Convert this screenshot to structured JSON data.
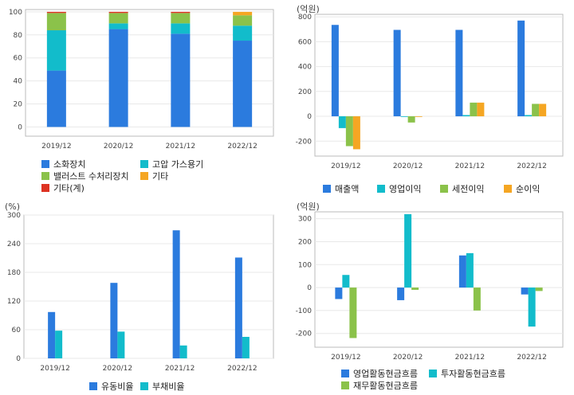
{
  "colors": {
    "blue": "#2b7bde",
    "cyan": "#12bccb",
    "green": "#8bc24a",
    "orange": "#f5a623",
    "red": "#dd3322",
    "plot_border": "#bbbbbb",
    "grid": "#e8e8e8"
  },
  "chart_data": [
    {
      "id": "composition",
      "type": "bar",
      "stacked": true,
      "unit_label": "",
      "categories": [
        "2019/12",
        "2020/12",
        "2021/12",
        "2022/12"
      ],
      "ylim": [
        -8,
        102
      ],
      "yticks": [
        0,
        20,
        40,
        60,
        80,
        100
      ],
      "series": [
        {
          "name": "소화장치",
          "color": "#2b7bde",
          "values": [
            49,
            85,
            81,
            75
          ]
        },
        {
          "name": "고압 가스용기",
          "color": "#12bccb",
          "values": [
            35,
            5,
            9,
            13
          ]
        },
        {
          "name": "밸러스트 수처리장치",
          "color": "#8bc24a",
          "values": [
            15,
            9,
            9,
            9
          ]
        },
        {
          "name": "기타",
          "color": "#f5a623",
          "values": [
            0,
            0,
            0,
            3
          ]
        },
        {
          "name": "기타(계)",
          "color": "#dd3322",
          "values": [
            1,
            1,
            1,
            0
          ]
        }
      ]
    },
    {
      "id": "income",
      "type": "bar",
      "unit_label": "(억원)",
      "categories": [
        "2019/12",
        "2020/12",
        "2021/12",
        "2022/12"
      ],
      "ylim": [
        -320,
        820
      ],
      "yticks": [
        -200,
        0,
        200,
        400,
        600,
        800
      ],
      "series": [
        {
          "name": "매출액",
          "color": "#2b7bde",
          "values": [
            735,
            695,
            695,
            770
          ]
        },
        {
          "name": "영업이익",
          "color": "#12bccb",
          "values": [
            -95,
            -5,
            10,
            10
          ]
        },
        {
          "name": "세전이익",
          "color": "#8bc24a",
          "values": [
            -240,
            -50,
            110,
            100
          ]
        },
        {
          "name": "순이익",
          "color": "#f5a623",
          "values": [
            -265,
            -5,
            110,
            100
          ]
        }
      ]
    },
    {
      "id": "ratios",
      "type": "bar",
      "unit_label": "(%)",
      "categories": [
        "2019/12",
        "2020/12",
        "2021/12",
        "2022/12"
      ],
      "ylim": [
        0,
        300
      ],
      "yticks": [
        0,
        60,
        120,
        180,
        240,
        300
      ],
      "series": [
        {
          "name": "유동비율",
          "color": "#2b7bde",
          "values": [
            97,
            158,
            268,
            211
          ]
        },
        {
          "name": "부채비율",
          "color": "#12bccb",
          "values": [
            58,
            56,
            27,
            45
          ]
        }
      ]
    },
    {
      "id": "cashflow",
      "type": "bar",
      "unit_label": "(억원)",
      "categories": [
        "2019/12",
        "2020/12",
        "2021/12",
        "2022/12"
      ],
      "ylim": [
        -260,
        330
      ],
      "yticks": [
        -200,
        -100,
        0,
        100,
        200,
        300
      ],
      "series": [
        {
          "name": "영업활동현금흐름",
          "color": "#2b7bde",
          "values": [
            -50,
            -55,
            140,
            -30
          ]
        },
        {
          "name": "투자활동현금흐름",
          "color": "#12bccb",
          "values": [
            55,
            320,
            150,
            -170
          ]
        },
        {
          "name": "재무활동현금흐름",
          "color": "#8bc24a",
          "values": [
            -220,
            -10,
            -100,
            -15
          ]
        }
      ]
    }
  ]
}
